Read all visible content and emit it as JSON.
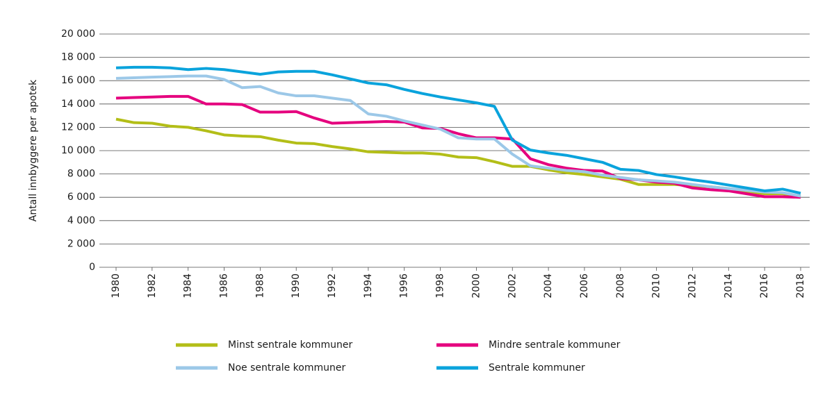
{
  "chart_data": {
    "type": "line",
    "y_label": "Antall innbyggere per apotek",
    "x": [
      1980,
      1981,
      1982,
      1983,
      1984,
      1985,
      1986,
      1987,
      1988,
      1989,
      1990,
      1991,
      1992,
      1993,
      1994,
      1995,
      1996,
      1997,
      1998,
      1999,
      2000,
      2001,
      2002,
      2003,
      2004,
      2005,
      2006,
      2007,
      2008,
      2009,
      2010,
      2011,
      2012,
      2013,
      2014,
      2015,
      2016,
      2017,
      2018
    ],
    "xlim": [
      1980,
      2018
    ],
    "xticks": [
      1980,
      1982,
      1984,
      1986,
      1988,
      1990,
      1992,
      1994,
      1996,
      1998,
      2000,
      2002,
      2004,
      2006,
      2008,
      2010,
      2012,
      2014,
      2016,
      2018
    ],
    "ylim": [
      0,
      20000
    ],
    "yticks": [
      0,
      {
        "value": 2000,
        "label": "2 000"
      },
      {
        "value": 4000,
        "label": "4 000"
      },
      {
        "value": 6000,
        "label": "6 000"
      },
      {
        "value": 8000,
        "label": "8 000"
      },
      {
        "value": 10000,
        "label": "10 000"
      },
      {
        "value": 12000,
        "label": "12 000"
      },
      {
        "value": 14000,
        "label": "14 000"
      },
      {
        "value": 16000,
        "label": "16 000"
      },
      {
        "value": 18000,
        "label": "18 000"
      },
      {
        "value": 20000,
        "label": "20 000"
      }
    ],
    "grid": true,
    "series": [
      {
        "name": "Minst sentrale kommuner",
        "color": "#b3be18",
        "values": [
          12700,
          12400,
          12350,
          12100,
          12000,
          11700,
          11350,
          11250,
          11200,
          10900,
          10650,
          10600,
          10350,
          10150,
          9900,
          9850,
          9800,
          9800,
          9700,
          9450,
          9400,
          9050,
          8650,
          8650,
          8350,
          8100,
          7950,
          7750,
          7550,
          7100,
          7100,
          7100,
          7000,
          6900,
          6750,
          6500,
          6300,
          6300,
          6100
        ]
      },
      {
        "name": "Mindre sentrale kommuner",
        "color": "#e5007e",
        "values": [
          14500,
          14550,
          14600,
          14650,
          14650,
          14000,
          14000,
          13950,
          13300,
          13300,
          13350,
          12800,
          12350,
          12400,
          12450,
          12500,
          12450,
          11950,
          11900,
          11450,
          11100,
          11100,
          11000,
          9300,
          8800,
          8500,
          8300,
          8250,
          7600,
          7500,
          7300,
          7200,
          6800,
          6650,
          6550,
          6300,
          6050,
          6050,
          6000
        ]
      },
      {
        "name": "Noe sentrale kommuner",
        "color": "#9cc8e8",
        "values": [
          16200,
          16250,
          16300,
          16350,
          16400,
          16400,
          16100,
          15400,
          15500,
          14950,
          14700,
          14700,
          14500,
          14300,
          13150,
          12950,
          12550,
          12200,
          11850,
          11100,
          11000,
          11000,
          9700,
          8700,
          8500,
          8300,
          8200,
          7900,
          7700,
          7500,
          7400,
          7300,
          7100,
          6900,
          6750,
          6600,
          6450,
          6400,
          6100
        ]
      },
      {
        "name": "Sentrale kommuner",
        "color": "#0aa3dc",
        "values": [
          17100,
          17150,
          17150,
          17100,
          16950,
          17050,
          16950,
          16750,
          16550,
          16750,
          16800,
          16800,
          16500,
          16150,
          15800,
          15650,
          15250,
          14900,
          14600,
          14350,
          14100,
          13800,
          10900,
          10050,
          9800,
          9600,
          9300,
          9000,
          8400,
          8300,
          7950,
          7750,
          7500,
          7300,
          7050,
          6800,
          6550,
          6700,
          6350
        ]
      }
    ]
  }
}
